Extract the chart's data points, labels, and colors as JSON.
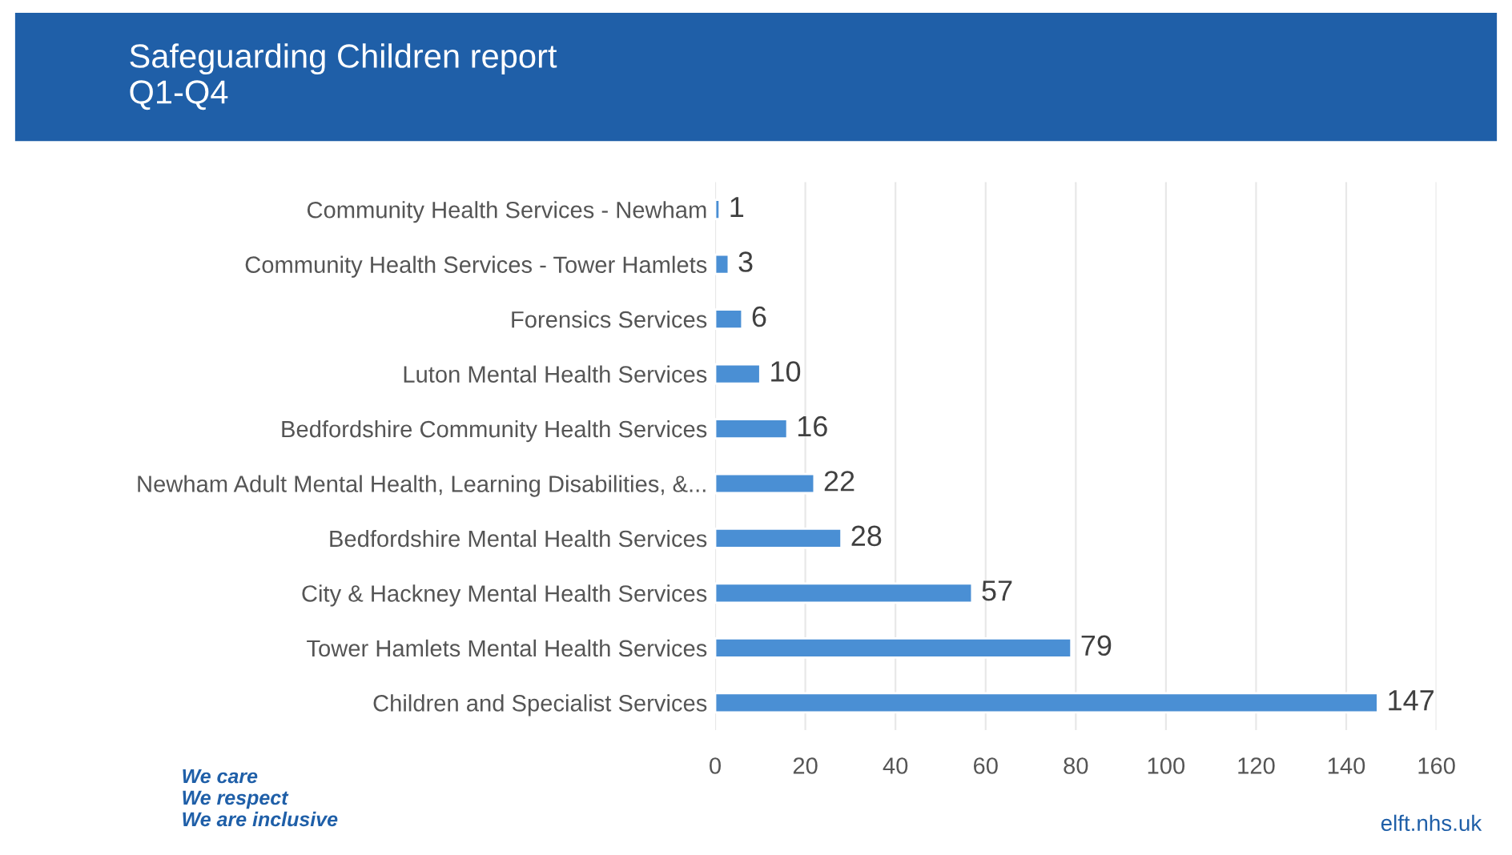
{
  "chart_data": {
    "type": "bar",
    "orientation": "horizontal",
    "title": "Safeguarding Children report\nQ1-Q4",
    "categories": [
      "Community Health Services - Newham",
      "Community Health Services - Tower Hamlets",
      "Forensics Services",
      "Luton Mental Health Services",
      "Bedfordshire Community Health Services",
      "Newham Adult Mental Health, Learning Disabilities, &...",
      "Bedfordshire Mental Health Services",
      "City & Hackney Mental Health Services",
      "Tower Hamlets Mental Health Services",
      "Children and Specialist Services"
    ],
    "values": [
      1,
      3,
      6,
      10,
      16,
      22,
      28,
      57,
      79,
      147
    ],
    "color": "#4a8fd4",
    "xlim": [
      0,
      160
    ],
    "xticks": [
      0,
      20,
      40,
      60,
      80,
      100,
      120,
      140,
      160
    ],
    "grid": "x",
    "data_labels": true,
    "annotations": [
      "We care\nWe respect\nWe are inclusive",
      "elft.nhs.uk"
    ]
  }
}
